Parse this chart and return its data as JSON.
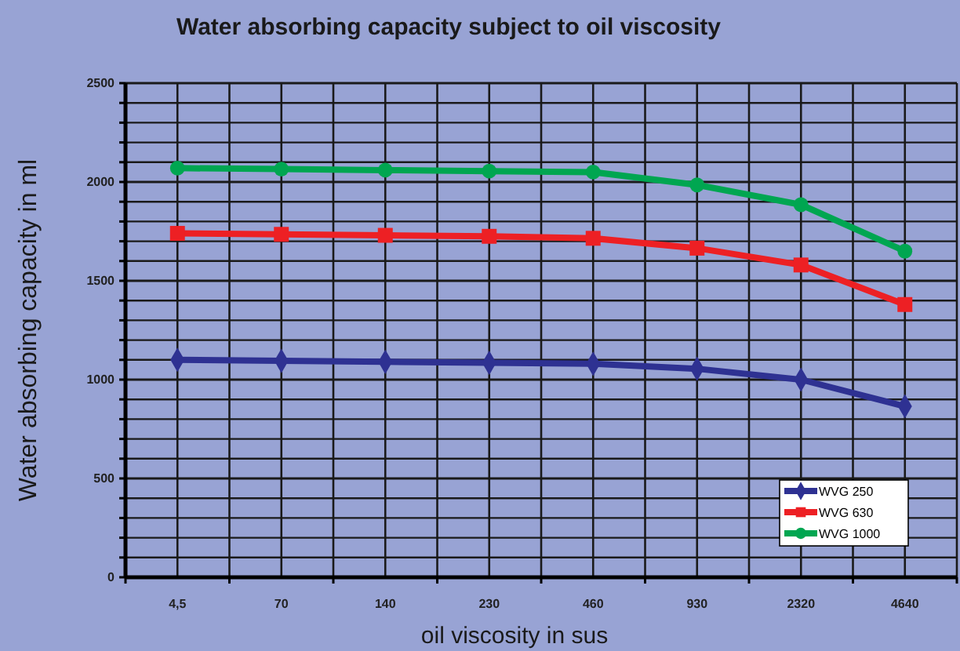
{
  "chart_data": {
    "type": "line",
    "title": "Water absorbing capacity subject to oil viscosity",
    "xlabel": "oil viscosity in sus",
    "ylabel": "Water absorbing capacity in ml",
    "categories": [
      "4,5",
      "70",
      "140",
      "230",
      "460",
      "930",
      "2320",
      "4640"
    ],
    "series": [
      {
        "name": "WVG 250",
        "color": "#2e3192",
        "marker": "diamond",
        "values": [
          1100,
          1095,
          1090,
          1085,
          1080,
          1055,
          1000,
          865
        ]
      },
      {
        "name": "WVG 630",
        "color": "#ed2024",
        "marker": "square",
        "values": [
          1740,
          1735,
          1730,
          1725,
          1715,
          1665,
          1580,
          1380
        ]
      },
      {
        "name": "WVG 1000",
        "color": "#00a651",
        "marker": "circle",
        "values": [
          2070,
          2065,
          2060,
          2055,
          2050,
          1985,
          1885,
          1650
        ]
      }
    ],
    "ylim": [
      0,
      2500
    ],
    "yticks": [
      0,
      {
        "value": 100,
        "label": null
      },
      {
        "value": 200,
        "label": null
      },
      {
        "value": 300,
        "label": null
      },
      {
        "value": 400,
        "label": null
      },
      500,
      {
        "value": 600,
        "label": null
      },
      {
        "value": 700,
        "label": null
      },
      {
        "value": 800,
        "label": null
      },
      {
        "value": 900,
        "label": null
      },
      1000,
      {
        "value": 1100,
        "label": null
      },
      {
        "value": 1200,
        "label": null
      },
      {
        "value": 1300,
        "label": null
      },
      {
        "value": 1400,
        "label": null
      },
      1500,
      {
        "value": 1600,
        "label": null
      },
      {
        "value": 1700,
        "label": null
      },
      {
        "value": 1800,
        "label": null
      },
      {
        "value": 1900,
        "label": null
      },
      2000,
      {
        "value": 2100,
        "label": null
      },
      {
        "value": 2200,
        "label": null
      },
      {
        "value": 2300,
        "label": null
      },
      {
        "value": 2400,
        "label": null
      },
      2500
    ],
    "grid": true,
    "legend": "bottom right",
    "line_style": "solid"
  }
}
